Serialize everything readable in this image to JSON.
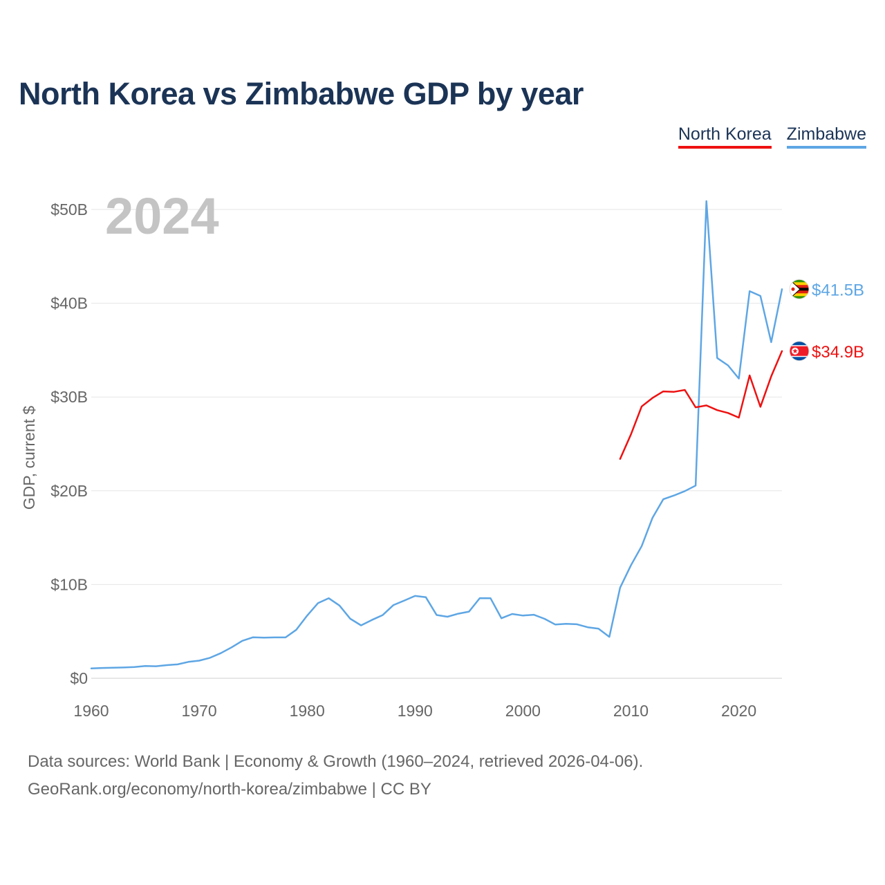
{
  "title": "North Korea vs Zimbabwe GDP by year",
  "legend": [
    {
      "label": "North Korea",
      "color": "#ee1111"
    },
    {
      "label": "Zimbabwe",
      "color": "#5ea6e4"
    }
  ],
  "source": {
    "line1": "Data sources: World Bank | Economy & Growth (1960–2024, retrieved 2026-04-06).",
    "line2": "GeoRank.org/economy/north-korea/zimbabwe | CC BY"
  },
  "chart_data": {
    "type": "line",
    "title": "North Korea vs Zimbabwe GDP by year",
    "current_year": "2024",
    "xlabel": "",
    "ylabel": "GDP, current $",
    "xlim": [
      1960,
      2024
    ],
    "ylim": [
      0,
      50
    ],
    "unit": "billion USD",
    "grid": true,
    "legend_position": "top-right",
    "y_ticks": [
      {
        "value": 0,
        "label": "$0"
      },
      {
        "value": 10,
        "label": "$10B"
      },
      {
        "value": 20,
        "label": "$20B"
      },
      {
        "value": 30,
        "label": "$30B"
      },
      {
        "value": 40,
        "label": "$40B"
      },
      {
        "value": 50,
        "label": "$50B"
      }
    ],
    "x_ticks": [
      {
        "value": 1960,
        "label": "1960"
      },
      {
        "value": 1970,
        "label": "1970"
      },
      {
        "value": 1980,
        "label": "1980"
      },
      {
        "value": 1990,
        "label": "1990"
      },
      {
        "value": 2000,
        "label": "2000"
      },
      {
        "value": 2010,
        "label": "2010"
      },
      {
        "value": 2020,
        "label": "2020"
      }
    ],
    "series": [
      {
        "name": "Zimbabwe",
        "color": "#5ea6e4",
        "end_label": "$41.5B",
        "x": [
          1960,
          1961,
          1962,
          1963,
          1964,
          1965,
          1966,
          1967,
          1968,
          1969,
          1970,
          1971,
          1972,
          1973,
          1974,
          1975,
          1976,
          1977,
          1978,
          1979,
          1980,
          1981,
          1982,
          1983,
          1984,
          1985,
          1986,
          1987,
          1988,
          1989,
          1990,
          1991,
          1992,
          1993,
          1994,
          1995,
          1996,
          1997,
          1998,
          1999,
          2000,
          2001,
          2002,
          2003,
          2004,
          2005,
          2006,
          2007,
          2008,
          2009,
          2010,
          2011,
          2012,
          2013,
          2014,
          2015,
          2016,
          2017,
          2018,
          2019,
          2020,
          2021,
          2022,
          2023,
          2024
        ],
        "values": [
          1.05,
          1.1,
          1.12,
          1.15,
          1.2,
          1.31,
          1.28,
          1.4,
          1.48,
          1.75,
          1.88,
          2.18,
          2.68,
          3.3,
          4.0,
          4.37,
          4.33,
          4.36,
          4.36,
          5.18,
          6.68,
          8.01,
          8.54,
          7.76,
          6.35,
          5.64,
          6.22,
          6.74,
          7.81,
          8.29,
          8.78,
          8.64,
          6.75,
          6.56,
          6.89,
          7.11,
          8.55,
          8.53,
          6.4,
          6.86,
          6.69,
          6.78,
          6.34,
          5.73,
          5.81,
          5.76,
          5.44,
          5.29,
          4.42,
          9.67,
          12.04,
          14.1,
          17.11,
          19.09,
          19.5,
          19.96,
          20.55,
          50.89,
          34.16,
          33.37,
          31.97,
          41.29,
          40.78,
          35.85,
          41.5
        ]
      },
      {
        "name": "North Korea",
        "color": "#ee1111",
        "end_label": "$34.9B",
        "x": [
          2009,
          2010,
          2011,
          2012,
          2013,
          2014,
          2015,
          2016,
          2017,
          2018,
          2019,
          2020,
          2021,
          2022,
          2023,
          2024
        ],
        "values": [
          23.4,
          26.0,
          29.0,
          29.9,
          30.6,
          30.55,
          30.75,
          28.9,
          29.1,
          28.6,
          28.3,
          27.8,
          32.3,
          28.95,
          32.2,
          34.9
        ]
      }
    ]
  }
}
